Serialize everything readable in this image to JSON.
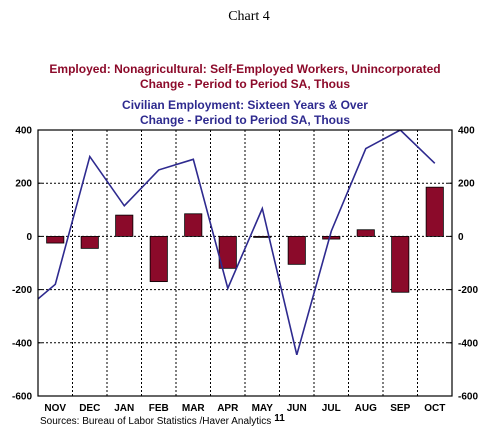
{
  "chart_title": "Chart 4",
  "legend": {
    "bar_line1": "Employed: Nonagricultural: Self-Employed Workers, Unincorporated",
    "bar_line2": "Change - Period to Period    SA, Thous",
    "line_line1": "Civilian Employment: Sixteen Years & Over",
    "line_line2": "Change - Period to Period    SA, Thous"
  },
  "source": "Sources:  Bureau of Labor Statistics /Haver Analytics",
  "colors": {
    "bar": "#8b0a2a",
    "line": "#2e2a8f"
  },
  "chart_data": {
    "type": "bar+line",
    "categories": [
      "NOV",
      "DEC",
      "JAN",
      "FEB",
      "MAR",
      "APR",
      "MAY",
      "JUN",
      "JUL",
      "AUG",
      "SEP",
      "OCT"
    ],
    "year_label": "11",
    "y_ticks": [
      400,
      200,
      0,
      -200,
      -400,
      -600
    ],
    "ylim": [
      -600,
      400
    ],
    "grid": true,
    "series": [
      {
        "kind": "bar",
        "values": [
          -25,
          -45,
          80,
          -170,
          85,
          -120,
          0,
          -105,
          -10,
          25,
          -210,
          185
        ]
      },
      {
        "kind": "line",
        "x": [
          -0.5,
          0,
          1,
          2,
          3,
          4,
          5,
          6,
          7,
          8,
          9,
          10,
          11
        ],
        "values": [
          -235,
          -180,
          300,
          115,
          250,
          290,
          -195,
          105,
          -445,
          20,
          330,
          400,
          275
        ]
      }
    ]
  }
}
